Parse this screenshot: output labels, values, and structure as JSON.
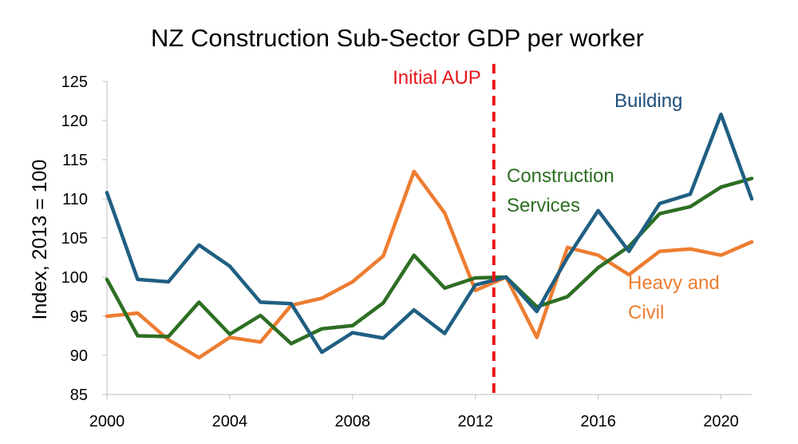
{
  "chart_data": {
    "type": "line",
    "title": "NZ Construction Sub-Sector GDP per worker",
    "xlabel": "",
    "ylabel": "Index,  2013 = 100",
    "xlim": [
      2000,
      2021
    ],
    "ylim": [
      85,
      125
    ],
    "x_ticks": [
      2000,
      2004,
      2008,
      2012,
      2016,
      2020
    ],
    "y_ticks": [
      85,
      90,
      95,
      100,
      105,
      110,
      115,
      120,
      125
    ],
    "grid": false,
    "x": [
      2000,
      2001,
      2002,
      2003,
      2004,
      2005,
      2006,
      2007,
      2008,
      2009,
      2010,
      2011,
      2012,
      2013,
      2014,
      2015,
      2016,
      2017,
      2018,
      2019,
      2020,
      2021
    ],
    "series": [
      {
        "name": "Building",
        "color": "#1f5f82",
        "values": [
          110.8,
          99.7,
          99.4,
          104.1,
          101.4,
          96.8,
          96.6,
          90.4,
          92.9,
          92.2,
          95.8,
          92.8,
          99.0,
          100.0,
          95.6,
          102.5,
          108.5,
          103.3,
          109.4,
          110.6,
          120.8,
          110.0
        ]
      },
      {
        "name": "Construction Services",
        "color": "#2d6e23",
        "values": [
          99.7,
          92.5,
          92.4,
          96.8,
          92.7,
          95.1,
          91.5,
          93.4,
          93.8,
          96.7,
          102.8,
          98.6,
          99.9,
          100.0,
          96.2,
          97.5,
          101.2,
          103.9,
          108.1,
          109.0,
          111.5,
          112.6
        ]
      },
      {
        "name": "Heavy and Civil",
        "color": "#ed7d31",
        "values": [
          95.0,
          95.4,
          92.0,
          89.7,
          92.3,
          91.7,
          96.4,
          97.3,
          99.4,
          102.7,
          113.5,
          108.2,
          98.3,
          100.0,
          92.3,
          103.8,
          102.8,
          100.3,
          103.3,
          103.6,
          102.8,
          104.5
        ]
      }
    ],
    "annotations": [
      {
        "id": "aup",
        "label": "Initial AUP",
        "x": 2012.6,
        "color": "#e8141b",
        "style": "dashed vertical line"
      },
      {
        "id": "building",
        "lines": [
          "Building"
        ],
        "color": "#1f4e79"
      },
      {
        "id": "construction",
        "lines": [
          "Construction",
          "Services"
        ],
        "color": "#2d6e23"
      },
      {
        "id": "heavy",
        "lines": [
          "Heavy and",
          "Civil"
        ],
        "color": "#ed7d31"
      }
    ]
  }
}
